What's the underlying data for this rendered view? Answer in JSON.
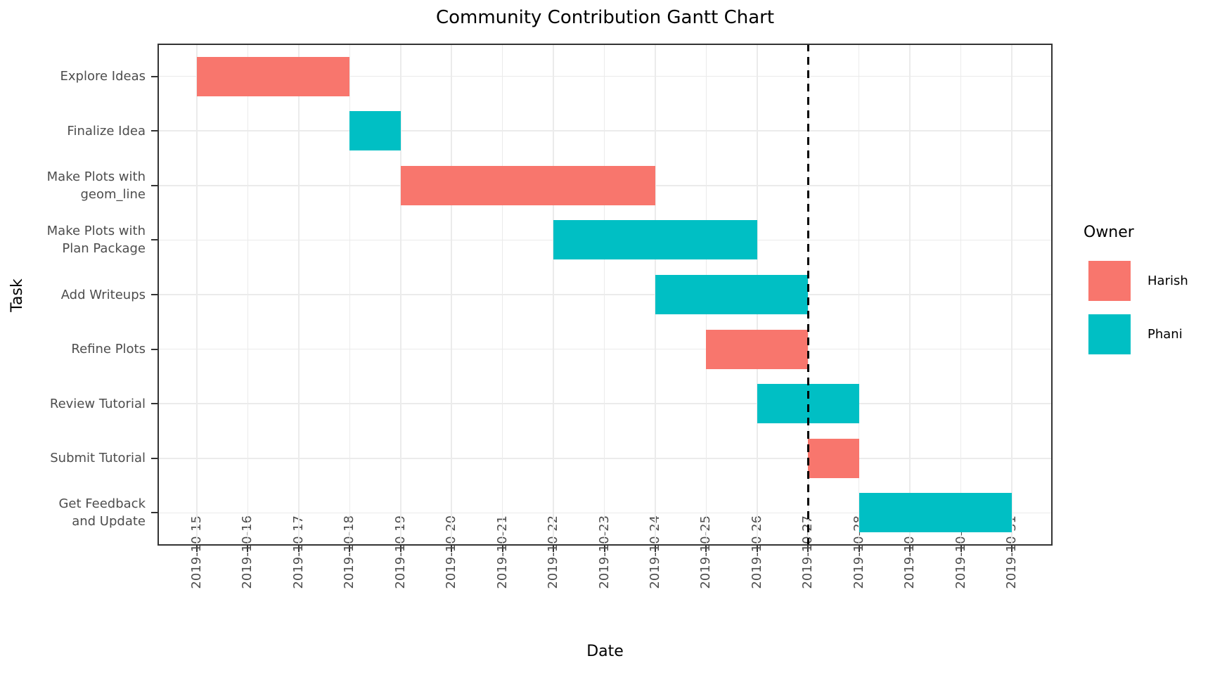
{
  "chart_data": {
    "type": "bar",
    "variant": "gantt",
    "title": "Community Contribution Gantt Chart",
    "xlabel": "Date",
    "ylabel": "Task",
    "x_ticks": [
      "2019-10-15",
      "2019-10-16",
      "2019-10-17",
      "2019-10-18",
      "2019-10-19",
      "2019-10-20",
      "2019-10-21",
      "2019-10-22",
      "2019-10-23",
      "2019-10-24",
      "2019-10-25",
      "2019-10-26",
      "2019-10-27",
      "2019-10-28",
      "2019-10-29",
      "2019-10-30",
      "2019-10-31"
    ],
    "x_range": [
      "2019-10-15",
      "2019-10-31"
    ],
    "tasks": [
      {
        "label": "Explore Ideas",
        "display": "Explore Ideas",
        "start": "2019-10-15",
        "end": "2019-10-18",
        "owner": "Harish"
      },
      {
        "label": "Finalize Idea",
        "display": "Finalize Idea",
        "start": "2019-10-18",
        "end": "2019-10-19",
        "owner": "Phani"
      },
      {
        "label": "Make Plots with geom_line",
        "display": "Make Plots with\ngeom_line",
        "start": "2019-10-19",
        "end": "2019-10-24",
        "owner": "Harish"
      },
      {
        "label": "Make Plots with Plan Package",
        "display": "Make Plots with\nPlan Package",
        "start": "2019-10-22",
        "end": "2019-10-26",
        "owner": "Phani"
      },
      {
        "label": "Add Writeups",
        "display": "Add Writeups",
        "start": "2019-10-24",
        "end": "2019-10-27",
        "owner": "Phani"
      },
      {
        "label": "Refine Plots",
        "display": "Refine Plots",
        "start": "2019-10-25",
        "end": "2019-10-27",
        "owner": "Harish"
      },
      {
        "label": "Review Tutorial",
        "display": "Review Tutorial",
        "start": "2019-10-26",
        "end": "2019-10-28",
        "owner": "Phani"
      },
      {
        "label": "Submit Tutorial",
        "display": "Submit Tutorial",
        "start": "2019-10-27",
        "end": "2019-10-28",
        "owner": "Harish"
      },
      {
        "label": "Get Feedback and Update",
        "display": "Get Feedback\nand Update",
        "start": "2019-10-28",
        "end": "2019-10-31",
        "owner": "Phani"
      }
    ],
    "reference_line": {
      "x": "2019-10-27",
      "style": "dashed",
      "color": "#000000"
    },
    "legend": {
      "title": "Owner",
      "position": "right",
      "entries": [
        {
          "label": "Harish",
          "color": "#F8766D"
        },
        {
          "label": "Phani",
          "color": "#00BFC4"
        }
      ]
    },
    "grid": true,
    "panel_style": {
      "background": "#FFFFFF",
      "gridline_color": "#EBEBEB",
      "border_color": "#333333",
      "tick_color": "#333333",
      "tick_label_color": "#4D4D4D"
    }
  }
}
